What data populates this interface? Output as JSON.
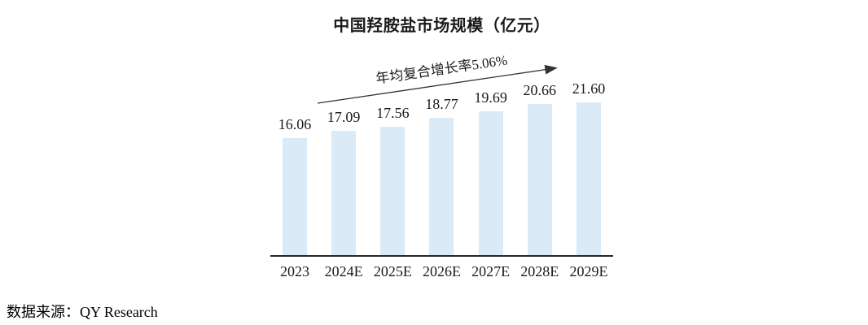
{
  "chart": {
    "title": "中国羟胺盐市场规模（亿元）",
    "annotation": "年均复合增长率5.06%"
  },
  "chart_data": {
    "type": "bar",
    "title": "中国羟胺盐市场规模（亿元）",
    "categories": [
      "2023",
      "2024E",
      "2025E",
      "2026E",
      "2027E",
      "2028E",
      "2029E"
    ],
    "values": [
      16.06,
      17.09,
      17.56,
      18.77,
      19.69,
      20.66,
      21.6
    ],
    "value_labels": [
      "16.06",
      "17.09",
      "17.56",
      "18.77",
      "19.69",
      "20.66",
      "21.60"
    ],
    "annotation": "年均复合增长率5.06%",
    "xlabel": "",
    "ylabel": "",
    "ylim": [
      0,
      24
    ],
    "gridlines": false,
    "y_axis_shown": false,
    "legend": "none",
    "bar_color": "#DAEAF6",
    "axis_color": "#262626",
    "arrow_color": "#333333"
  },
  "source": {
    "text": "数据来源：QY Research"
  }
}
